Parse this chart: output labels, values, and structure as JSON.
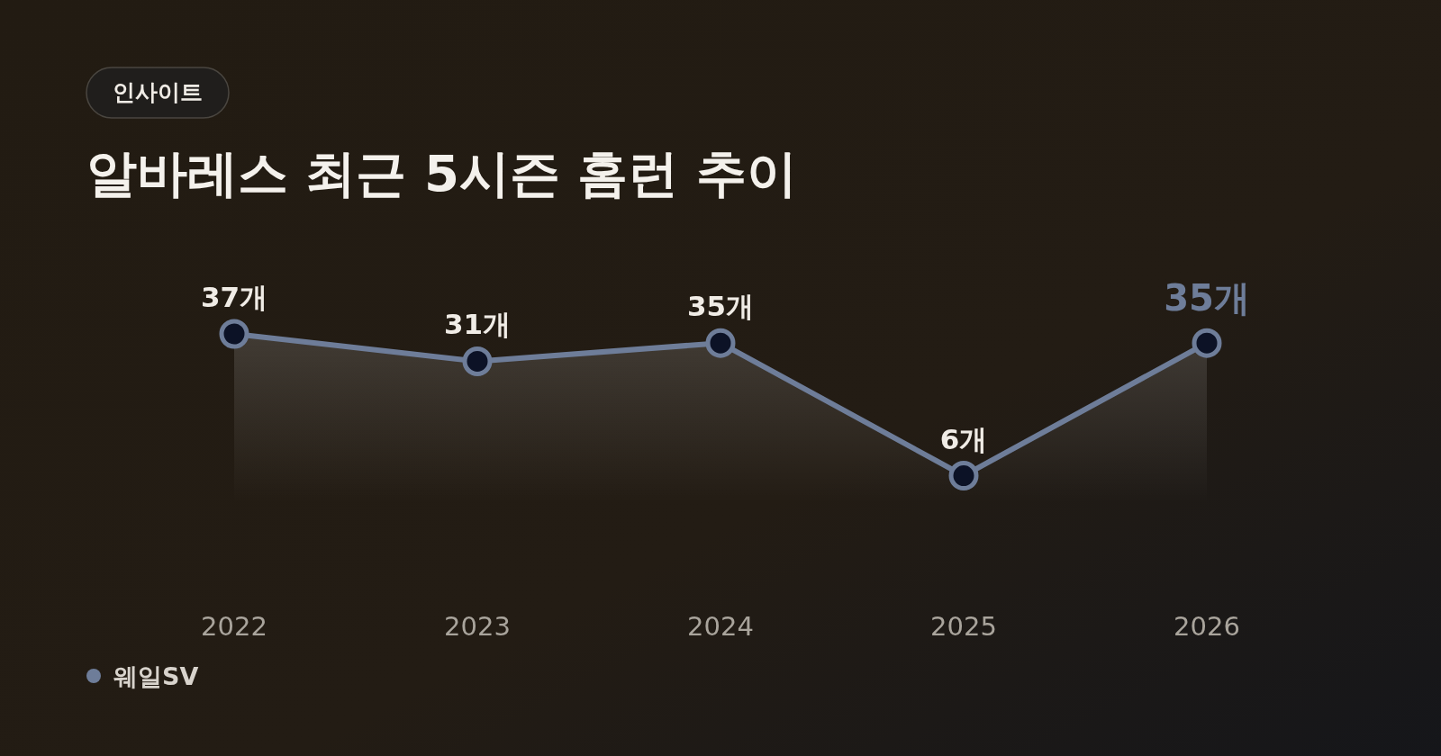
{
  "chart_data": {
    "type": "area",
    "title": "알바레스 최근 5시즌 홈런 추이",
    "subtitle": "인사이트",
    "categories": [
      "2022",
      "2023",
      "2024",
      "2025",
      "2026"
    ],
    "series": [
      {
        "name": "웨일SV",
        "color": "#6e7d99",
        "values": [
          37,
          31,
          35,
          6,
          35
        ],
        "value_labels": [
          "37개",
          "31개",
          "35개",
          "6개",
          "35개"
        ]
      }
    ],
    "marker": "circle",
    "legend": "bottom left",
    "grid": false
  }
}
